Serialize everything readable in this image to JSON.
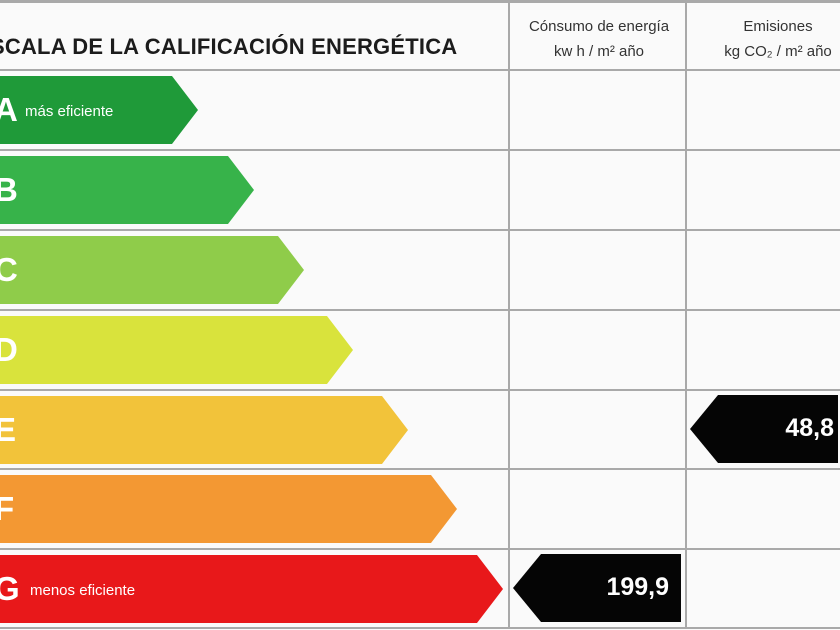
{
  "header": {
    "title": "SCALA DE LA CALIFICACIÓN ENERGÉTICA",
    "col_consumption": [
      "Cónsumo de energía",
      "kw h / m² año"
    ],
    "col_emissions": [
      "Emisiones",
      "kg CO₂ / m² año"
    ]
  },
  "chart_data": {
    "type": "table",
    "title": "SCALA DE LA CALIFICACIÓN ENERGÉTICA",
    "grades": [
      {
        "letter": "A",
        "label": "más eficiente",
        "color": "#1f9a39"
      },
      {
        "letter": "B",
        "label": "",
        "color": "#37b34a"
      },
      {
        "letter": "C",
        "label": "",
        "color": "#8fcc4a"
      },
      {
        "letter": "D",
        "label": "",
        "color": "#d9e33c"
      },
      {
        "letter": "E",
        "label": "",
        "color": "#f2c33a"
      },
      {
        "letter": "F",
        "label": "",
        "color": "#f39833"
      },
      {
        "letter": "G",
        "label": "menos eficiente",
        "color": "#e8181a"
      }
    ],
    "consumption": {
      "grade": "G",
      "value": "199,9"
    },
    "emissions": {
      "grade": "E",
      "value": "48,8"
    }
  }
}
